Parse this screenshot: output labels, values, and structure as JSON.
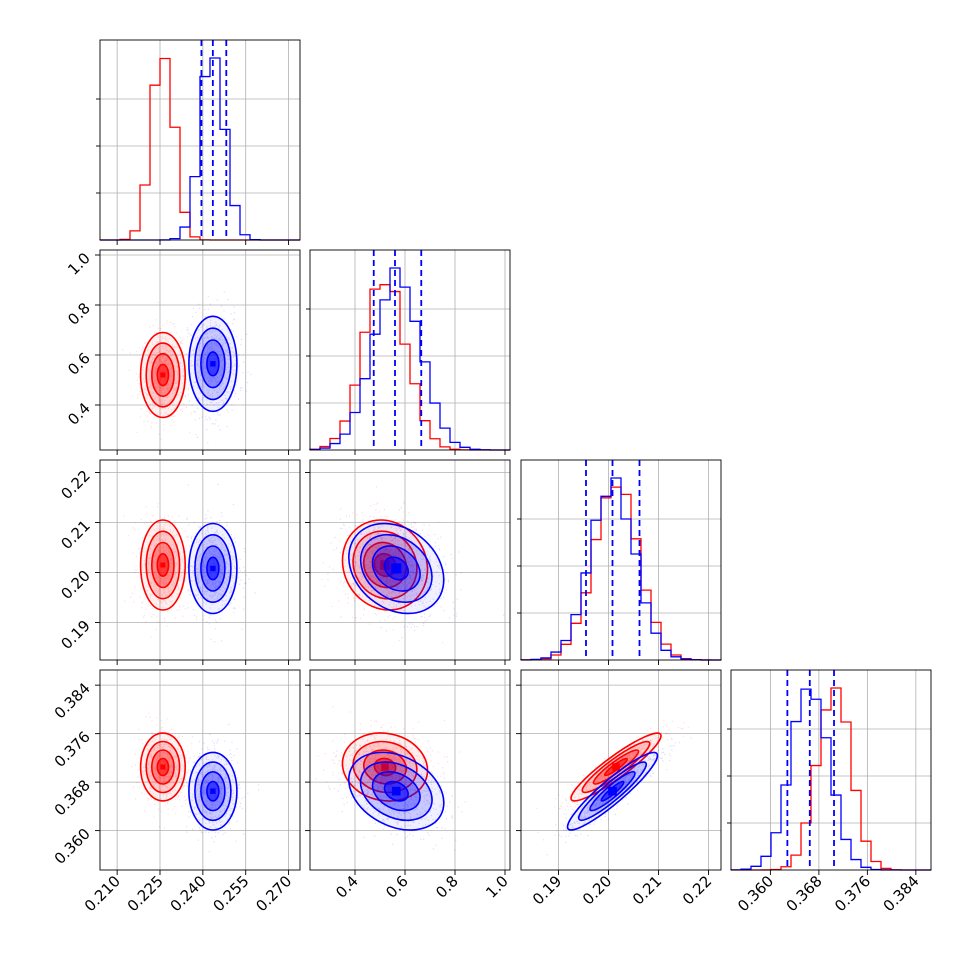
{
  "chart_data": {
    "type": "corner",
    "title": "",
    "parameters": [
      {
        "range": [
          0.204,
          0.274
        ],
        "ticks": [
          0.21,
          0.225,
          0.24,
          0.255,
          0.27
        ],
        "tick_labels": [
          "0.210",
          "0.225",
          "0.240",
          "0.255",
          "0.270"
        ]
      },
      {
        "range": [
          0.22,
          1.02
        ],
        "ticks": [
          0.4,
          0.6,
          0.8,
          1.0
        ],
        "tick_labels": [
          "0.4",
          "0.6",
          "0.8",
          "1.0"
        ]
      },
      {
        "range": [
          0.1825,
          0.2225
        ],
        "ticks": [
          0.19,
          0.2,
          0.21,
          0.22
        ],
        "tick_labels": [
          "0.19",
          "0.20",
          "0.21",
          "0.22"
        ]
      },
      {
        "range": [
          0.3535,
          0.3865
        ],
        "ticks": [
          0.36,
          0.368,
          0.376,
          0.384
        ],
        "tick_labels": [
          "0.360",
          "0.368",
          "0.376",
          "0.384"
        ]
      }
    ],
    "series": [
      {
        "color": "#ff0000",
        "means": [
          0.226,
          0.52,
          0.2015,
          0.3705
        ],
        "sds": [
          0.0039,
          0.085,
          0.0045,
          0.0028
        ]
      },
      {
        "color": "#0000ff",
        "means": [
          0.2435,
          0.565,
          0.2008,
          0.3665
        ],
        "sds": [
          0.0042,
          0.095,
          0.0045,
          0.0032
        ]
      }
    ],
    "correlations": [
      {
        "pair": [
          1,
          0
        ],
        "red": 0.0,
        "blue": 0.0
      },
      {
        "pair": [
          2,
          0
        ],
        "red": 0.0,
        "blue": 0.0
      },
      {
        "pair": [
          2,
          1
        ],
        "red": -0.1,
        "blue": -0.25
      },
      {
        "pair": [
          3,
          0
        ],
        "red": 0.0,
        "blue": 0.0
      },
      {
        "pair": [
          3,
          1
        ],
        "red": -0.1,
        "blue": -0.3
      },
      {
        "pair": [
          3,
          2
        ],
        "red": 0.92,
        "blue": 0.92
      }
    ],
    "quantiles": [
      {
        "param": 0,
        "values": [
          0.2395,
          0.2435,
          0.2482
        ]
      },
      {
        "param": 1,
        "values": [
          0.475,
          0.56,
          0.665
        ]
      },
      {
        "param": 2,
        "values": [
          0.1955,
          0.2008,
          0.2062
        ]
      },
      {
        "param": 3,
        "values": [
          0.3628,
          0.3665,
          0.3705
        ]
      }
    ],
    "quantile_color": "#0000ff",
    "grid": true
  }
}
